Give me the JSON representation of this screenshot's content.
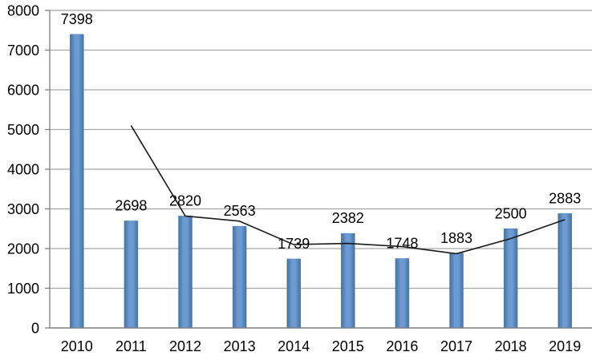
{
  "chart_data": {
    "type": "bar",
    "title": "",
    "xlabel": "",
    "ylabel": "",
    "categories": [
      "2010",
      "2011",
      "2012",
      "2013",
      "2014",
      "2015",
      "2016",
      "2017",
      "2018",
      "2019"
    ],
    "series": [
      {
        "name": "annual-value-bars",
        "type": "bar",
        "values": [
          7398,
          2698,
          2820,
          2563,
          1739,
          2382,
          1748,
          1883,
          2500,
          2883
        ]
      },
      {
        "name": "trend-line",
        "type": "line",
        "values": [
          null,
          5100,
          2820,
          2690,
          2100,
          2130,
          2050,
          1870,
          2250,
          2730
        ],
        "note": "unlabeled black overlay line, values estimated from gridlines"
      }
    ],
    "data_labels": [
      "7398",
      "2698",
      "2820",
      "2563",
      "1739",
      "2382",
      "1748",
      "1883",
      "2500",
      "2883"
    ],
    "ylim": [
      0,
      8000
    ],
    "ytick_step": 1000,
    "ytick_labels": [
      "0",
      "1000",
      "2000",
      "3000",
      "4000",
      "5000",
      "6000",
      "7000",
      "8000"
    ],
    "grid": "horizontal",
    "legend": "none",
    "colors": {
      "bar_fill": "#4f81bd",
      "bar_fill_light": "#6b9bd2",
      "bar_fill_dark": "#44719f",
      "gridline": "#a6a6a6",
      "axis": "#7f7f7f",
      "trend_line": "#1a1a1a",
      "label_text": "#000000",
      "background": "#ffffff"
    }
  }
}
